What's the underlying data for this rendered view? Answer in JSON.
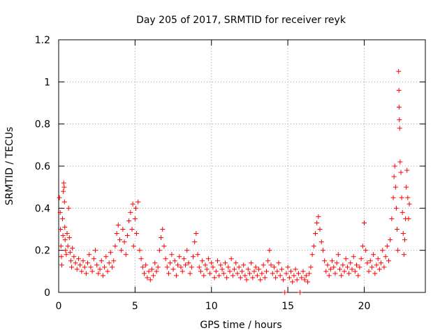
{
  "chart_data": {
    "type": "scatter",
    "title": "Day 205 of 2017, SRMTID for receiver reyk",
    "xlabel": "GPS time / hours",
    "ylabel": "SRMTID / TECUs",
    "xlim": [
      0,
      24
    ],
    "ylim": [
      0,
      1.2
    ],
    "xticks": [
      0,
      5,
      10,
      15,
      20
    ],
    "yticks": [
      0,
      0.2,
      0.4,
      0.6,
      0.8,
      1,
      1.2
    ],
    "xtick_labels": [
      "0",
      "5",
      "10",
      "15",
      "20"
    ],
    "ytick_labels": [
      "0",
      "0.2",
      "0.4",
      "0.6",
      "0.8",
      "1",
      "1.2"
    ],
    "grid": true,
    "marker": "+",
    "series": [
      {
        "name": "SRMTID",
        "color": "#ff0000",
        "points": [
          [
            0.05,
            0.45
          ],
          [
            0.1,
            0.38
          ],
          [
            0.12,
            0.3
          ],
          [
            0.15,
            0.22
          ],
          [
            0.18,
            0.17
          ],
          [
            0.2,
            0.13
          ],
          [
            0.25,
            0.35
          ],
          [
            0.28,
            0.27
          ],
          [
            0.3,
            0.48
          ],
          [
            0.33,
            0.52
          ],
          [
            0.36,
            0.5
          ],
          [
            0.38,
            0.43
          ],
          [
            0.4,
            0.31
          ],
          [
            0.42,
            0.25
          ],
          [
            0.45,
            0.2
          ],
          [
            0.5,
            0.18
          ],
          [
            0.55,
            0.28
          ],
          [
            0.6,
            0.22
          ],
          [
            0.65,
            0.4
          ],
          [
            0.7,
            0.26
          ],
          [
            0.75,
            0.19
          ],
          [
            0.8,
            0.15
          ],
          [
            0.85,
            0.12
          ],
          [
            0.9,
            0.21
          ],
          [
            1.0,
            0.17
          ],
          [
            1.1,
            0.14
          ],
          [
            1.2,
            0.11
          ],
          [
            1.3,
            0.16
          ],
          [
            1.4,
            0.13
          ],
          [
            1.5,
            0.1
          ],
          [
            1.6,
            0.15
          ],
          [
            1.7,
            0.12
          ],
          [
            1.8,
            0.09
          ],
          [
            1.9,
            0.14
          ],
          [
            2.0,
            0.18
          ],
          [
            2.1,
            0.12
          ],
          [
            2.2,
            0.1
          ],
          [
            2.3,
            0.16
          ],
          [
            2.4,
            0.2
          ],
          [
            2.5,
            0.13
          ],
          [
            2.6,
            0.09
          ],
          [
            2.7,
            0.11
          ],
          [
            2.8,
            0.15
          ],
          [
            2.9,
            0.08
          ],
          [
            3.0,
            0.12
          ],
          [
            3.1,
            0.17
          ],
          [
            3.2,
            0.1
          ],
          [
            3.3,
            0.14
          ],
          [
            3.4,
            0.19
          ],
          [
            3.5,
            0.12
          ],
          [
            3.6,
            0.15
          ],
          [
            3.7,
            0.22
          ],
          [
            3.8,
            0.28
          ],
          [
            3.9,
            0.32
          ],
          [
            4.0,
            0.25
          ],
          [
            4.1,
            0.2
          ],
          [
            4.2,
            0.3
          ],
          [
            4.3,
            0.24
          ],
          [
            4.4,
            0.18
          ],
          [
            4.5,
            0.27
          ],
          [
            4.6,
            0.34
          ],
          [
            4.7,
            0.38
          ],
          [
            4.8,
            0.3
          ],
          [
            4.85,
            0.42
          ],
          [
            4.9,
            0.22
          ],
          [
            5.0,
            0.35
          ],
          [
            5.05,
            0.4
          ],
          [
            5.1,
            0.28
          ],
          [
            5.2,
            0.43
          ],
          [
            5.3,
            0.2
          ],
          [
            5.4,
            0.16
          ],
          [
            5.5,
            0.12
          ],
          [
            5.6,
            0.09
          ],
          [
            5.7,
            0.13
          ],
          [
            5.8,
            0.07
          ],
          [
            5.9,
            0.1
          ],
          [
            6.0,
            0.06
          ],
          [
            6.1,
            0.11
          ],
          [
            6.2,
            0.08
          ],
          [
            6.3,
            0.14
          ],
          [
            6.4,
            0.1
          ],
          [
            6.5,
            0.12
          ],
          [
            6.6,
            0.2
          ],
          [
            6.7,
            0.26
          ],
          [
            6.8,
            0.3
          ],
          [
            6.9,
            0.22
          ],
          [
            7.0,
            0.16
          ],
          [
            7.1,
            0.12
          ],
          [
            7.2,
            0.09
          ],
          [
            7.3,
            0.14
          ],
          [
            7.4,
            0.18
          ],
          [
            7.5,
            0.11
          ],
          [
            7.6,
            0.15
          ],
          [
            7.7,
            0.08
          ],
          [
            7.8,
            0.13
          ],
          [
            7.9,
            0.17
          ],
          [
            8.0,
            0.12
          ],
          [
            8.1,
            0.1
          ],
          [
            8.2,
            0.16
          ],
          [
            8.3,
            0.13
          ],
          [
            8.4,
            0.2
          ],
          [
            8.5,
            0.14
          ],
          [
            8.6,
            0.09
          ],
          [
            8.7,
            0.12
          ],
          [
            8.8,
            0.17
          ],
          [
            8.9,
            0.24
          ],
          [
            9.0,
            0.28
          ],
          [
            9.1,
            0.18
          ],
          [
            9.2,
            0.12
          ],
          [
            9.3,
            0.1
          ],
          [
            9.4,
            0.15
          ],
          [
            9.5,
            0.08
          ],
          [
            9.6,
            0.13
          ],
          [
            9.7,
            0.11
          ],
          [
            9.8,
            0.16
          ],
          [
            9.9,
            0.09
          ],
          [
            10.0,
            0.14
          ],
          [
            10.1,
            0.12
          ],
          [
            10.2,
            0.07
          ],
          [
            10.3,
            0.1
          ],
          [
            10.4,
            0.15
          ],
          [
            10.5,
            0.08
          ],
          [
            10.6,
            0.13
          ],
          [
            10.7,
            0.11
          ],
          [
            10.8,
            0.09
          ],
          [
            10.9,
            0.14
          ],
          [
            11.0,
            0.07
          ],
          [
            11.1,
            0.12
          ],
          [
            11.2,
            0.1
          ],
          [
            11.3,
            0.16
          ],
          [
            11.4,
            0.08
          ],
          [
            11.5,
            0.11
          ],
          [
            11.6,
            0.14
          ],
          [
            11.7,
            0.09
          ],
          [
            11.8,
            0.12
          ],
          [
            11.9,
            0.07
          ],
          [
            12.0,
            0.1
          ],
          [
            12.1,
            0.13
          ],
          [
            12.2,
            0.08
          ],
          [
            12.3,
            0.06
          ],
          [
            12.4,
            0.11
          ],
          [
            12.5,
            0.09
          ],
          [
            12.6,
            0.14
          ],
          [
            12.7,
            0.07
          ],
          [
            12.8,
            0.1
          ],
          [
            12.9,
            0.12
          ],
          [
            13.0,
            0.08
          ],
          [
            13.1,
            0.11
          ],
          [
            13.2,
            0.06
          ],
          [
            13.3,
            0.09
          ],
          [
            13.4,
            0.13
          ],
          [
            13.5,
            0.07
          ],
          [
            13.6,
            0.1
          ],
          [
            13.7,
            0.15
          ],
          [
            13.8,
            0.2
          ],
          [
            13.9,
            0.13
          ],
          [
            14.0,
            0.09
          ],
          [
            14.1,
            0.12
          ],
          [
            14.2,
            0.07
          ],
          [
            14.3,
            0.1
          ],
          [
            14.4,
            0.14
          ],
          [
            14.5,
            0.08
          ],
          [
            14.6,
            0.11
          ],
          [
            14.7,
            0.06
          ],
          [
            14.8,
            0.0
          ],
          [
            14.9,
            0.09
          ],
          [
            15.0,
            0.12
          ],
          [
            15.1,
            0.07
          ],
          [
            15.2,
            0.1
          ],
          [
            15.3,
            0.05
          ],
          [
            15.4,
            0.08
          ],
          [
            15.5,
            0.11
          ],
          [
            15.6,
            0.06
          ],
          [
            15.7,
            0.09
          ],
          [
            15.8,
            0.0
          ],
          [
            15.9,
            0.07
          ],
          [
            16.0,
            0.1
          ],
          [
            16.1,
            0.06
          ],
          [
            16.2,
            0.08
          ],
          [
            16.3,
            0.05
          ],
          [
            16.4,
            0.09
          ],
          [
            16.5,
            0.12
          ],
          [
            16.6,
            0.18
          ],
          [
            16.7,
            0.22
          ],
          [
            16.8,
            0.28
          ],
          [
            16.9,
            0.33
          ],
          [
            17.0,
            0.36
          ],
          [
            17.1,
            0.3
          ],
          [
            17.2,
            0.24
          ],
          [
            17.3,
            0.2
          ],
          [
            17.4,
            0.15
          ],
          [
            17.5,
            0.1
          ],
          [
            17.6,
            0.13
          ],
          [
            17.7,
            0.08
          ],
          [
            17.8,
            0.11
          ],
          [
            17.9,
            0.15
          ],
          [
            18.0,
            0.12
          ],
          [
            18.1,
            0.09
          ],
          [
            18.2,
            0.14
          ],
          [
            18.3,
            0.18
          ],
          [
            18.4,
            0.11
          ],
          [
            18.5,
            0.08
          ],
          [
            18.6,
            0.13
          ],
          [
            18.7,
            0.1
          ],
          [
            18.8,
            0.16
          ],
          [
            18.9,
            0.12
          ],
          [
            19.0,
            0.09
          ],
          [
            19.1,
            0.14
          ],
          [
            19.2,
            0.11
          ],
          [
            19.3,
            0.17
          ],
          [
            19.4,
            0.1
          ],
          [
            19.5,
            0.13
          ],
          [
            19.6,
            0.08
          ],
          [
            19.7,
            0.12
          ],
          [
            19.8,
            0.16
          ],
          [
            19.9,
            0.22
          ],
          [
            20.0,
            0.33
          ],
          [
            20.1,
            0.2
          ],
          [
            20.2,
            0.14
          ],
          [
            20.3,
            0.1
          ],
          [
            20.4,
            0.15
          ],
          [
            20.5,
            0.12
          ],
          [
            20.6,
            0.18
          ],
          [
            20.7,
            0.09
          ],
          [
            20.8,
            0.13
          ],
          [
            20.9,
            0.16
          ],
          [
            21.0,
            0.11
          ],
          [
            21.1,
            0.14
          ],
          [
            21.2,
            0.2
          ],
          [
            21.3,
            0.12
          ],
          [
            21.4,
            0.17
          ],
          [
            21.5,
            0.22
          ],
          [
            21.6,
            0.15
          ],
          [
            21.7,
            0.25
          ],
          [
            21.8,
            0.35
          ],
          [
            21.9,
            0.45
          ],
          [
            21.95,
            0.55
          ],
          [
            22.0,
            0.6
          ],
          [
            22.05,
            0.5
          ],
          [
            22.1,
            0.4
          ],
          [
            22.15,
            0.3
          ],
          [
            22.2,
            0.2
          ],
          [
            22.25,
            1.05
          ],
          [
            22.27,
            0.96
          ],
          [
            22.28,
            0.88
          ],
          [
            22.3,
            0.82
          ],
          [
            22.32,
            0.78
          ],
          [
            22.35,
            0.62
          ],
          [
            22.4,
            0.57
          ],
          [
            22.45,
            0.45
          ],
          [
            22.5,
            0.38
          ],
          [
            22.55,
            0.28
          ],
          [
            22.6,
            0.18
          ],
          [
            22.65,
            0.25
          ],
          [
            22.7,
            0.35
          ],
          [
            22.75,
            0.5
          ],
          [
            22.8,
            0.58
          ],
          [
            22.85,
            0.45
          ],
          [
            22.9,
            0.35
          ],
          [
            22.95,
            0.42
          ]
        ]
      }
    ]
  }
}
